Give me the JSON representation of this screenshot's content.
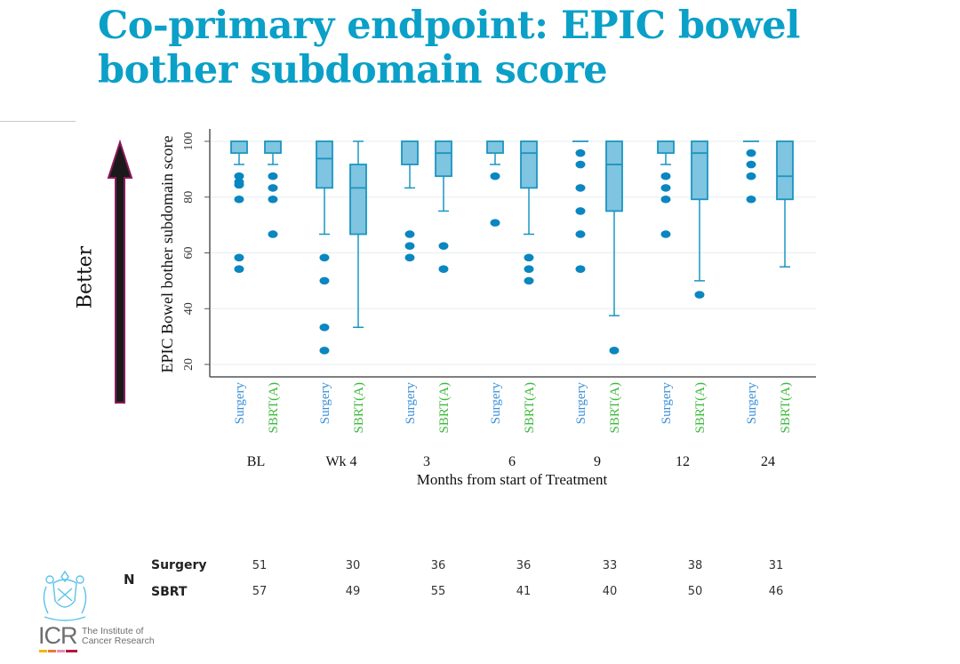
{
  "slide": {
    "title_line1": "Co-primary endpoint: EPIC bowel",
    "title_line2": "bother subdomain score",
    "better_label": "Better",
    "title_color": "#0aa0c8",
    "arrow_fill": "#1a1a1a",
    "arrow_outline": "#8b1a5a"
  },
  "chart_data": {
    "type": "box",
    "title": "",
    "ylabel": "EPIC Bowel bother subdomain score",
    "xlabel": "Months from start of Treatment",
    "ylim": [
      17,
      103
    ],
    "yticks": [
      20,
      40,
      60,
      80,
      100
    ],
    "grid": true,
    "legend": "none",
    "series_colors": {
      "Surgery": "#3a8fd8",
      "SBRT(A)": "#3cb83c"
    },
    "box_fill": "#7fc4e0",
    "box_stroke": "#1b95c0",
    "outlier_color": "#0a86c0",
    "groups": [
      {
        "label": "BL",
        "boxes": [
          {
            "arm": "Surgery",
            "whisker_low": 91.7,
            "q1": 95.8,
            "median": 100,
            "q3": 100,
            "whisker_high": 100,
            "outliers": [
              87.5,
              85.4,
              84.4,
              79.2,
              58.3,
              54.2
            ]
          },
          {
            "arm": "SBRT(A)",
            "whisker_low": 91.7,
            "q1": 95.8,
            "median": 100,
            "q3": 100,
            "whisker_high": 100,
            "outliers": [
              87.5,
              83.3,
              79.2,
              66.7
            ]
          }
        ]
      },
      {
        "label": "Wk 4",
        "boxes": [
          {
            "arm": "Surgery",
            "whisker_low": 66.7,
            "q1": 83.3,
            "median": 93.8,
            "q3": 100,
            "whisker_high": 100,
            "outliers": [
              58.3,
              50,
              33.3,
              25
            ]
          },
          {
            "arm": "SBRT(A)",
            "whisker_low": 33.3,
            "q1": 66.7,
            "median": 83.3,
            "q3": 91.7,
            "whisker_high": 100,
            "outliers": []
          }
        ]
      },
      {
        "label": "3",
        "boxes": [
          {
            "arm": "Surgery",
            "whisker_low": 83.3,
            "q1": 91.7,
            "median": 100,
            "q3": 100,
            "whisker_high": 100,
            "outliers": [
              66.7,
              62.5,
              58.3
            ]
          },
          {
            "arm": "SBRT(A)",
            "whisker_low": 75,
            "q1": 87.5,
            "median": 95.8,
            "q3": 100,
            "whisker_high": 100,
            "outliers": [
              62.5,
              54.2
            ]
          }
        ]
      },
      {
        "label": "6",
        "boxes": [
          {
            "arm": "Surgery",
            "whisker_low": 91.7,
            "q1": 95.8,
            "median": 100,
            "q3": 100,
            "whisker_high": 100,
            "outliers": [
              87.5,
              70.8
            ]
          },
          {
            "arm": "SBRT(A)",
            "whisker_low": 66.7,
            "q1": 83.3,
            "median": 95.8,
            "q3": 100,
            "whisker_high": 100,
            "outliers": [
              58.3,
              54.2,
              50
            ]
          }
        ]
      },
      {
        "label": "9",
        "boxes": [
          {
            "arm": "Surgery",
            "whisker_low": 100,
            "q1": 100,
            "median": 100,
            "q3": 100,
            "whisker_high": 100,
            "outliers": [
              95.8,
              91.7,
              83.3,
              75,
              66.7,
              54.2
            ]
          },
          {
            "arm": "SBRT(A)",
            "whisker_low": 37.5,
            "q1": 75,
            "median": 91.7,
            "q3": 100,
            "whisker_high": 100,
            "outliers": [
              25
            ]
          }
        ]
      },
      {
        "label": "12",
        "boxes": [
          {
            "arm": "Surgery",
            "whisker_low": 91.7,
            "q1": 95.8,
            "median": 100,
            "q3": 100,
            "whisker_high": 100,
            "outliers": [
              87.5,
              83.3,
              79.2,
              66.7
            ]
          },
          {
            "arm": "SBRT(A)",
            "whisker_low": 50,
            "q1": 79.2,
            "median": 95.8,
            "q3": 100,
            "whisker_high": 100,
            "outliers": [
              45
            ]
          }
        ]
      },
      {
        "label": "24",
        "boxes": [
          {
            "arm": "Surgery",
            "whisker_low": 100,
            "q1": 100,
            "median": 100,
            "q3": 100,
            "whisker_high": 100,
            "outliers": [
              95.8,
              91.7,
              87.5,
              79.2
            ]
          },
          {
            "arm": "SBRT(A)",
            "whisker_low": 55,
            "q1": 79.2,
            "median": 87.5,
            "q3": 100,
            "whisker_high": 100,
            "outliers": []
          }
        ]
      }
    ]
  },
  "n_table": {
    "label": "N",
    "rows": [
      {
        "name": "Surgery",
        "values": [
          "51",
          "30",
          "36",
          "36",
          "33",
          "38",
          "31"
        ]
      },
      {
        "name": "SBRT",
        "values": [
          "57",
          "49",
          "55",
          "41",
          "40",
          "50",
          "46"
        ]
      }
    ]
  },
  "logo": {
    "mark": "ICR",
    "line1": "The Institute of",
    "line2": "Cancer Research",
    "bar_colors": [
      "#f2b705",
      "#e9773a",
      "#e78fb3",
      "#b3173d"
    ]
  }
}
